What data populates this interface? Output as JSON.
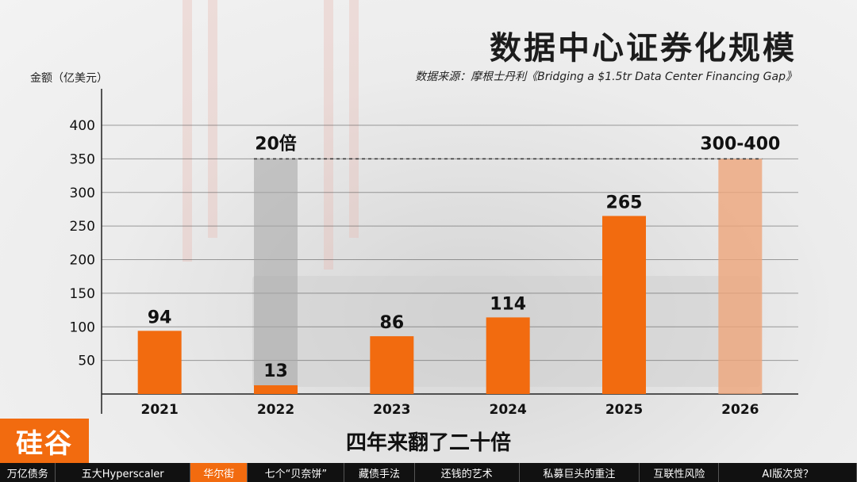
{
  "header": {
    "title": "数据中心证券化规模",
    "source": "数据来源：摩根士丹利《Bridging a $1.5tr Data Center Financing Gap》"
  },
  "chart_data": {
    "type": "bar",
    "ylabel": "金额（亿美元）",
    "yticks": [
      50,
      100,
      150,
      200,
      250,
      300,
      350,
      400
    ],
    "ylim": [
      0,
      400
    ],
    "categories": [
      "2021",
      "2022",
      "2023",
      "2024",
      "2025",
      "2026"
    ],
    "values": [
      94,
      13,
      86,
      114,
      265,
      350
    ],
    "value_labels": [
      "94",
      "13",
      "86",
      "114",
      "265",
      "300-400"
    ],
    "projected": [
      false,
      false,
      false,
      false,
      false,
      true
    ],
    "annotations": [
      {
        "category": "2022",
        "text": "20倍",
        "ghost_value": 350
      }
    ],
    "reference_line_value": 350,
    "colors": {
      "bar": "#f26b0f",
      "projected": "#eea57a",
      "ghost": "#a9a9a9",
      "axis": "#222222"
    }
  },
  "overlay": {
    "logo": "硅谷",
    "subtitle": "四年来翻了二十倍"
  },
  "nav": {
    "items": [
      "万亿债务",
      "五大Hyperscaler",
      "华尔街",
      "七个“贝奈饼”",
      "藏债手法",
      "还钱的艺术",
      "私募巨头的重注",
      "互联性风险",
      "AI版次贷？"
    ],
    "active_index": 2
  }
}
